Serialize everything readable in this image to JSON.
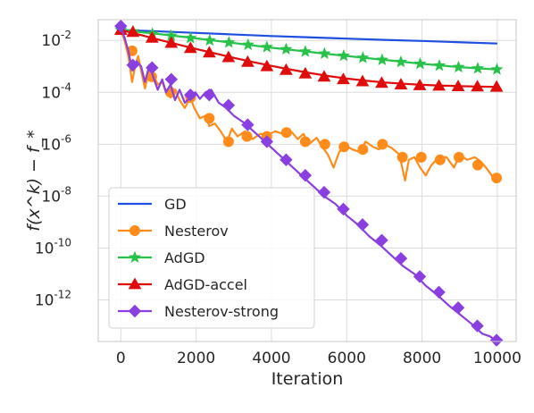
{
  "chart_data": {
    "type": "line",
    "xlabel": "Iteration",
    "ylabel": "f(x^k) − f_*",
    "xlim": [
      -600,
      10500
    ],
    "ylim_log10": [
      -13.6,
      -1.2
    ],
    "yscale": "log",
    "grid": true,
    "legend_placement": "lower-left",
    "x_ticks": [
      {
        "value": 0,
        "label": "0"
      },
      {
        "value": 2000,
        "label": "2000"
      },
      {
        "value": 4000,
        "label": "4000"
      },
      {
        "value": 6000,
        "label": "6000"
      },
      {
        "value": 8000,
        "label": "8000"
      },
      {
        "value": 10000,
        "label": "10000"
      }
    ],
    "y_ticks": [
      {
        "exp": -2,
        "base": "10",
        "sup": "-2"
      },
      {
        "exp": -4,
        "base": "10",
        "sup": "-4"
      },
      {
        "exp": -6,
        "base": "10",
        "sup": "-6"
      },
      {
        "exp": -8,
        "base": "10",
        "sup": "-8"
      },
      {
        "exp": -10,
        "base": "10",
        "sup": "-10"
      },
      {
        "exp": -12,
        "base": "10",
        "sup": "-12"
      }
    ],
    "series": [
      {
        "name": "GD",
        "color": "#1f4fe0",
        "marker": "none",
        "x": [
          0,
          1000,
          2000,
          3000,
          4000,
          5000,
          6000,
          7000,
          8000,
          9000,
          10000
        ],
        "log10_y": [
          -1.6,
          -1.65,
          -1.71,
          -1.77,
          -1.83,
          -1.88,
          -1.93,
          -1.98,
          -2.02,
          -2.07,
          -2.12
        ]
      },
      {
        "name": "Nesterov",
        "color": "#ff8c1a",
        "marker": "circle",
        "x": [
          0,
          100,
          200,
          300,
          380,
          460,
          560,
          640,
          760,
          860,
          980,
          1100,
          1200,
          1320,
          1450,
          1560,
          1700,
          1850,
          1950,
          2100,
          2250,
          2350,
          2500,
          2650,
          2820,
          2950,
          3100,
          3300,
          3500,
          3700,
          3900,
          4100,
          4300,
          4550,
          4700,
          4850,
          5000,
          5200,
          5350,
          5500,
          5650,
          5800,
          5950,
          6150,
          6350,
          6500,
          6700,
          6850,
          7000,
          7200,
          7400,
          7550,
          7650,
          7800,
          7950,
          8100,
          8250,
          8450,
          8650,
          8850,
          9000,
          9200,
          9400,
          9550,
          9700,
          9850,
          10000
        ],
        "log10_y": [
          -1.6,
          -2.0,
          -2.6,
          -3.6,
          -3.0,
          -2.6,
          -3.3,
          -3.85,
          -3.1,
          -3.3,
          -3.7,
          -3.6,
          -4.0,
          -4.2,
          -3.9,
          -4.3,
          -4.6,
          -4.2,
          -4.6,
          -5.0,
          -4.9,
          -5.3,
          -5.2,
          -5.5,
          -5.9,
          -5.4,
          -5.7,
          -5.5,
          -5.8,
          -5.6,
          -5.65,
          -5.5,
          -5.6,
          -5.55,
          -5.8,
          -5.6,
          -6.0,
          -5.75,
          -6.1,
          -6.4,
          -6.9,
          -6.3,
          -6.05,
          -6.2,
          -6.3,
          -5.9,
          -6.1,
          -6.2,
          -6.0,
          -6.15,
          -6.4,
          -7.4,
          -6.6,
          -6.5,
          -6.9,
          -7.2,
          -6.8,
          -6.5,
          -6.5,
          -6.9,
          -6.4,
          -6.6,
          -6.5,
          -6.65,
          -6.9,
          -7.2,
          -7.3
        ],
        "marker_x": [
          300,
          820,
          1320,
          1850,
          2350,
          2860,
          3350,
          3880,
          4400,
          4900,
          5420,
          5930,
          6430,
          6950,
          7480,
          7980,
          8480,
          8980,
          9480,
          9980
        ],
        "marker_log10_y": [
          -2.4,
          -3.4,
          -4.0,
          -4.2,
          -5.0,
          -5.9,
          -5.7,
          -5.7,
          -5.55,
          -5.9,
          -6.0,
          -6.1,
          -6.2,
          -6.0,
          -6.5,
          -6.5,
          -6.6,
          -6.5,
          -6.8,
          -7.3
        ]
      },
      {
        "name": "AdGD",
        "color": "#29c24a",
        "marker": "star",
        "x": [
          0,
          1000,
          2000,
          3000,
          4000,
          5000,
          6000,
          7000,
          8000,
          9000,
          10000
        ],
        "log10_y": [
          -1.6,
          -1.75,
          -1.92,
          -2.1,
          -2.28,
          -2.44,
          -2.6,
          -2.75,
          -2.9,
          -3.03,
          -3.12
        ],
        "marker_x": [
          0,
          330,
          840,
          1340,
          1850,
          2360,
          2870,
          3380,
          3880,
          4390,
          4900,
          5410,
          5920,
          6430,
          6940,
          7440,
          7950,
          8460,
          8970,
          9480,
          9990
        ],
        "marker_log10_y": [
          -1.6,
          -1.65,
          -1.74,
          -1.82,
          -1.91,
          -2.0,
          -2.08,
          -2.17,
          -2.26,
          -2.34,
          -2.43,
          -2.51,
          -2.59,
          -2.67,
          -2.75,
          -2.83,
          -2.9,
          -2.97,
          -3.03,
          -3.08,
          -3.12
        ]
      },
      {
        "name": "AdGD-accel",
        "color": "#e00c0c",
        "marker": "triangle",
        "x": [
          0,
          500,
          1000,
          1500,
          2000,
          2500,
          3000,
          3500,
          4000,
          4500,
          5000,
          5500,
          6000,
          6500,
          7000,
          7500,
          8000,
          8500,
          9000,
          9500,
          10000
        ],
        "log10_y": [
          -1.6,
          -1.78,
          -1.97,
          -2.15,
          -2.33,
          -2.5,
          -2.67,
          -2.83,
          -2.98,
          -3.12,
          -3.25,
          -3.37,
          -3.47,
          -3.55,
          -3.62,
          -3.67,
          -3.71,
          -3.74,
          -3.76,
          -3.78,
          -3.79
        ],
        "marker_x": [
          0,
          320,
          830,
          1340,
          1850,
          2350,
          2860,
          3370,
          3880,
          4390,
          4900,
          5400,
          5910,
          6420,
          6930,
          7440,
          7940,
          8450,
          8960,
          9470,
          9980
        ],
        "marker_log10_y": [
          -1.6,
          -1.68,
          -1.9,
          -2.1,
          -2.3,
          -2.47,
          -2.65,
          -2.83,
          -3.0,
          -3.14,
          -3.28,
          -3.4,
          -3.5,
          -3.58,
          -3.64,
          -3.7,
          -3.73,
          -3.75,
          -3.77,
          -3.78,
          -3.79
        ]
      },
      {
        "name": "Nesterov-strong",
        "color": "#8a3fe0",
        "marker": "diamond",
        "x": [
          0,
          100,
          200,
          300,
          420,
          540,
          640,
          760,
          860,
          980,
          1100,
          1200,
          1320,
          1440,
          1560,
          1700,
          1850,
          1980,
          2100,
          2250,
          2400,
          2600,
          2800,
          3000,
          3300,
          3600,
          3900,
          4200,
          4500,
          4800,
          5100,
          5400,
          5700,
          6000,
          6300,
          6600,
          6900,
          7200,
          7500,
          7800,
          8100,
          8400,
          8700,
          9000,
          9300,
          9600,
          9800,
          10000
        ],
        "log10_y": [
          -1.45,
          -1.9,
          -2.4,
          -3.15,
          -2.8,
          -3.0,
          -3.6,
          -2.95,
          -3.4,
          -3.9,
          -3.5,
          -4.0,
          -3.7,
          -4.3,
          -3.9,
          -4.4,
          -4.2,
          -4.0,
          -4.25,
          -4.0,
          -3.9,
          -4.4,
          -4.6,
          -4.9,
          -5.2,
          -5.6,
          -6.0,
          -6.4,
          -6.8,
          -7.2,
          -7.6,
          -8.0,
          -8.3,
          -8.75,
          -9.1,
          -9.55,
          -9.9,
          -10.3,
          -10.7,
          -11.0,
          -11.45,
          -11.8,
          -12.2,
          -12.55,
          -12.9,
          -13.3,
          -13.4,
          -13.6
        ],
        "marker_x": [
          0,
          320,
          830,
          1340,
          1850,
          2350,
          2860,
          3370,
          3880,
          4390,
          4900,
          5400,
          5910,
          6420,
          6930,
          7440,
          7940,
          8450,
          8960,
          9470,
          9980
        ],
        "marker_log10_y": [
          -1.45,
          -2.95,
          -3.05,
          -3.5,
          -4.1,
          -4.1,
          -4.5,
          -5.25,
          -5.9,
          -6.6,
          -7.2,
          -7.85,
          -8.5,
          -9.1,
          -9.7,
          -10.4,
          -11.1,
          -11.7,
          -12.3,
          -13.0,
          -13.55
        ]
      }
    ]
  }
}
